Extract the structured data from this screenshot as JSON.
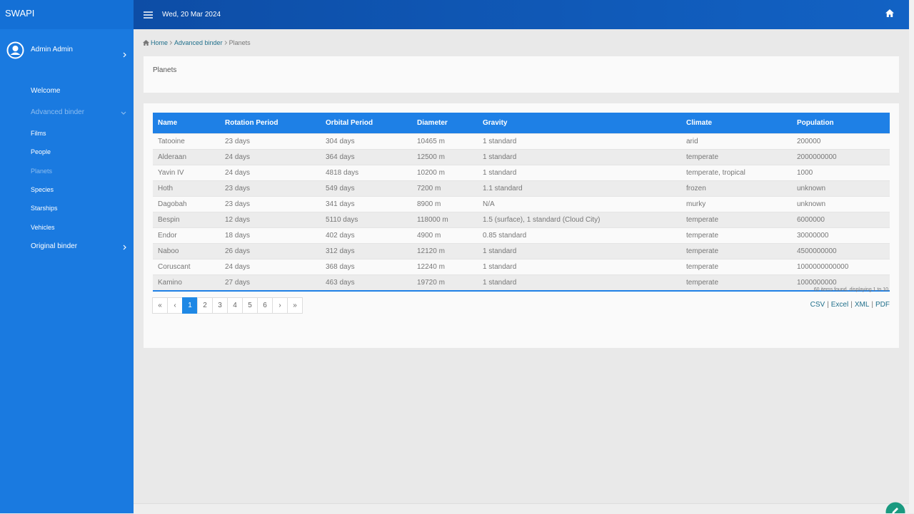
{
  "sidebar": {
    "brand": "SWAPI",
    "user": "Admin Admin",
    "menu": [
      {
        "label": "Welcome"
      },
      {
        "label": "Advanced binder",
        "children": [
          "Films",
          "People",
          "Planets",
          "Species",
          "Starships",
          "Vehicles"
        ]
      },
      {
        "label": "Original binder"
      }
    ]
  },
  "topbar": {
    "date": "Wed, 20 Mar 2024"
  },
  "breadcrumb": [
    "Home",
    "Advanced binder",
    "Planets"
  ],
  "panel": {
    "title": "Planets"
  },
  "table": {
    "columns": [
      "Name",
      "Rotation Period",
      "Orbital Period",
      "Diameter",
      "Gravity",
      "Climate",
      "Population"
    ],
    "rows": [
      [
        "Tatooine",
        "23 days",
        "304 days",
        "10465 m",
        "1 standard",
        "arid",
        "200000"
      ],
      [
        "Alderaan",
        "24 days",
        "364 days",
        "12500 m",
        "1 standard",
        "temperate",
        "2000000000"
      ],
      [
        "Yavin IV",
        "24 days",
        "4818 days",
        "10200 m",
        "1 standard",
        "temperate, tropical",
        "1000"
      ],
      [
        "Hoth",
        "23 days",
        "549 days",
        "7200 m",
        "1.1 standard",
        "frozen",
        "unknown"
      ],
      [
        "Dagobah",
        "23 days",
        "341 days",
        "8900 m",
        "N/A",
        "murky",
        "unknown"
      ],
      [
        "Bespin",
        "12 days",
        "5110 days",
        "118000 m",
        "1.5 (surface), 1 standard (Cloud City)",
        "temperate",
        "6000000"
      ],
      [
        "Endor",
        "18 days",
        "402 days",
        "4900 m",
        "0.85 standard",
        "temperate",
        "30000000"
      ],
      [
        "Naboo",
        "26 days",
        "312 days",
        "12120 m",
        "1 standard",
        "temperate",
        "4500000000"
      ],
      [
        "Coruscant",
        "24 days",
        "368 days",
        "12240 m",
        "1 standard",
        "temperate",
        "1000000000000"
      ],
      [
        "Kamino",
        "27 days",
        "463 days",
        "19720 m",
        "1 standard",
        "temperate",
        "1000000000"
      ]
    ],
    "summary": "60 items found, displaying 1 to 10."
  },
  "pagination": {
    "first": "«",
    "prev": "‹",
    "pages": [
      "1",
      "2",
      "3",
      "4",
      "5",
      "6"
    ],
    "next": "›",
    "last": "»"
  },
  "exports": {
    "links": [
      "CSV",
      "Excel",
      "XML",
      "PDF"
    ],
    "separator": "|"
  }
}
